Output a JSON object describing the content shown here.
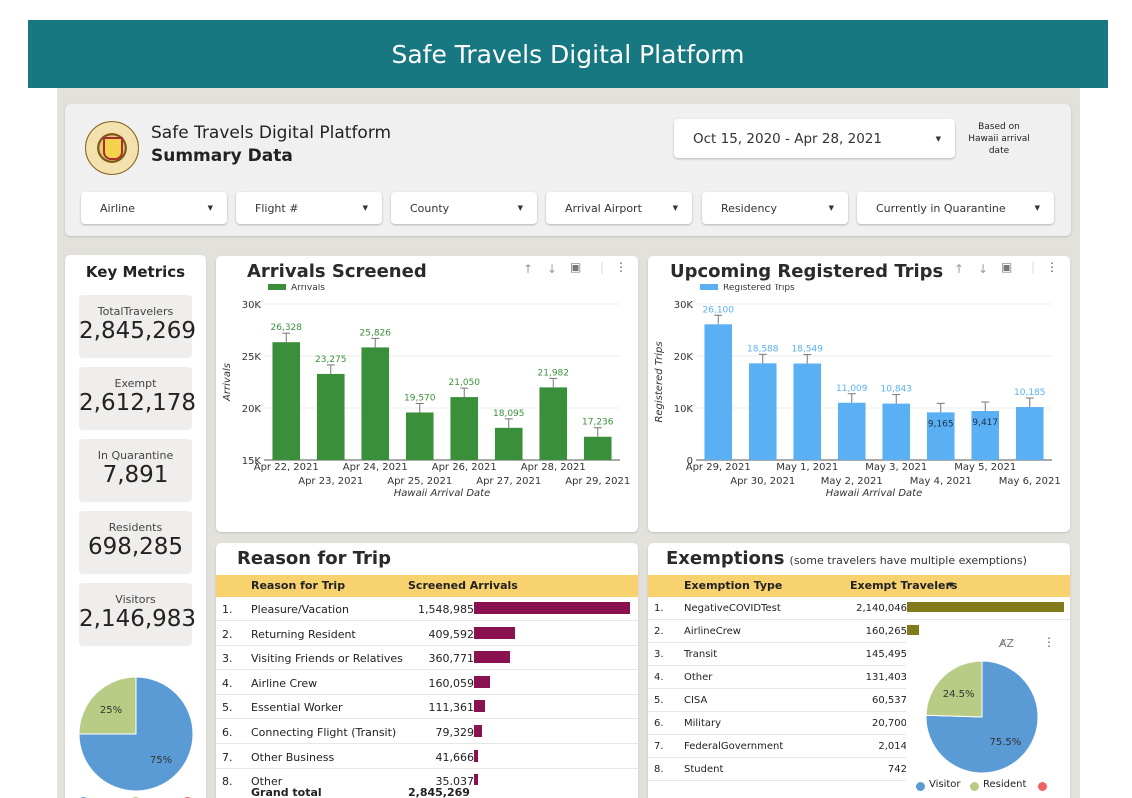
{
  "banner": {
    "title": "Safe Travels Digital Platform"
  },
  "header": {
    "title": "Safe Travels Digital Platform",
    "subtitle": "Summary Data",
    "date_range": "Oct 15, 2020 - Apr 28, 2021",
    "date_note": "Based on Hawaii arrival date",
    "filters": [
      "Airline",
      "Flight #",
      "County",
      "Arrival Airport",
      "Residency",
      "Currently in Quarantine"
    ]
  },
  "key_metrics": {
    "title": "Key Metrics",
    "items": [
      {
        "label": "TotalTravelers",
        "value": "2,845,269"
      },
      {
        "label": "Exempt",
        "value": "2,612,178"
      },
      {
        "label": "In Quarantine",
        "value": "7,891"
      },
      {
        "label": "Residents",
        "value": "698,285"
      },
      {
        "label": "Visitors",
        "value": "2,146,983"
      }
    ],
    "pie": [
      {
        "label": "75%",
        "value": 75,
        "color": "#5b9bd5"
      },
      {
        "label": "25%",
        "value": 25,
        "color": "#b9cc85"
      }
    ],
    "legend_colors": [
      "#5b9bd5",
      "#b9cc85",
      "#f06262"
    ]
  },
  "chart_data": [
    {
      "type": "bar",
      "title": "Arrivals Screened",
      "xlabel": "Hawaii Arrival Date",
      "ylabel": "Arrivals",
      "ylim": [
        15000,
        30000
      ],
      "yticks": [
        "15K",
        "20K",
        "25K",
        "30K"
      ],
      "categories": [
        "Apr 22, 2021",
        "Apr 23, 2021",
        "Apr 24, 2021",
        "Apr 25, 2021",
        "Apr 26, 2021",
        "Apr 27, 2021",
        "Apr 28, 2021",
        "Apr 29, 2021"
      ],
      "series": [
        {
          "name": "Arrivals",
          "values": [
            26328,
            23275,
            25826,
            19570,
            21050,
            18095,
            21982,
            17236
          ],
          "labels": [
            "26,328",
            "23,275",
            "25,826",
            "19,570",
            "21,050",
            "18,095",
            "21,982",
            "17,236"
          ]
        }
      ],
      "color": "#3a8f3a",
      "label_color": "#3a8f3a"
    },
    {
      "type": "bar",
      "title": "Upcoming Registered Trips",
      "xlabel": "Hawaii Arrival Date",
      "ylabel": "Registered Trips",
      "ylim": [
        0,
        30000
      ],
      "yticks": [
        "0",
        "10K",
        "20K",
        "30K"
      ],
      "categories": [
        "Apr 29, 2021",
        "Apr 30, 2021",
        "May 1, 2021",
        "May 2, 2021",
        "May 3, 2021",
        "May 4, 2021",
        "May 5, 2021",
        "May 6, 2021"
      ],
      "series": [
        {
          "name": "Registered Trips",
          "values": [
            26100,
            18588,
            18549,
            11009,
            10843,
            9165,
            9417,
            10185
          ],
          "labels": [
            "26,100",
            "18,588",
            "18,549",
            "11,009",
            "10,843",
            "9,165",
            "9,417",
            "10,185"
          ]
        }
      ],
      "color": "#5ab0f3",
      "label_color": "#5ab0f3"
    }
  ],
  "reason": {
    "title": "Reason for Trip",
    "col1": "Reason for Trip",
    "col2": "Screened Arrivals",
    "max": 1548985,
    "rows": [
      {
        "n": "1.",
        "name": "Pleasure/Vacation",
        "val": "1,548,985",
        "num": 1548985
      },
      {
        "n": "2.",
        "name": "Returning Resident",
        "val": "409,592",
        "num": 409592
      },
      {
        "n": "3.",
        "name": "Visiting Friends or Relatives",
        "val": "360,771",
        "num": 360771
      },
      {
        "n": "4.",
        "name": "Airline Crew",
        "val": "160,059",
        "num": 160059
      },
      {
        "n": "5.",
        "name": "Essential Worker",
        "val": "111,361",
        "num": 111361
      },
      {
        "n": "6.",
        "name": "Connecting Flight (Transit)",
        "val": "79,329",
        "num": 79329
      },
      {
        "n": "7.",
        "name": "Other Business",
        "val": "41,666",
        "num": 41666
      },
      {
        "n": "8.",
        "name": "Other",
        "val": "35,037",
        "num": 35037
      }
    ],
    "total_label": "Grand total",
    "total_value": "2,845,269",
    "bar_color": "#8b1250"
  },
  "exemptions": {
    "title": "Exemptions",
    "note": "(some travelers have multiple exemptions)",
    "col1": "Exemption Type",
    "col2": "Exempt Travelers",
    "max": 2140046,
    "rows": [
      {
        "n": "1.",
        "name": "NegativeCOVIDTest",
        "val": "2,140,046",
        "num": 2140046
      },
      {
        "n": "2.",
        "name": "AirlineCrew",
        "val": "160,265",
        "num": 160265
      },
      {
        "n": "3.",
        "name": "Transit",
        "val": "145,495",
        "num": 145495
      },
      {
        "n": "4.",
        "name": "Other",
        "val": "131,403",
        "num": 131403
      },
      {
        "n": "5.",
        "name": "CISA",
        "val": "60,537",
        "num": 60537
      },
      {
        "n": "6.",
        "name": "Military",
        "val": "20,700",
        "num": 20700
      },
      {
        "n": "7.",
        "name": "FederalGovernment",
        "val": "2,014",
        "num": 2014
      },
      {
        "n": "8.",
        "name": "Student",
        "val": "742",
        "num": 742
      }
    ],
    "bar_color": "#837a1c",
    "pie": [
      {
        "label": "75.5%",
        "value": 75.5,
        "color": "#5b9bd5"
      },
      {
        "label": "24.5%",
        "value": 24.5,
        "color": "#b9cc85"
      }
    ],
    "legend": [
      {
        "label": "Visitor",
        "color": "#5b9bd5"
      },
      {
        "label": "Resident",
        "color": "#b9cc85"
      },
      {
        "label": "",
        "color": "#f06262"
      }
    ]
  }
}
